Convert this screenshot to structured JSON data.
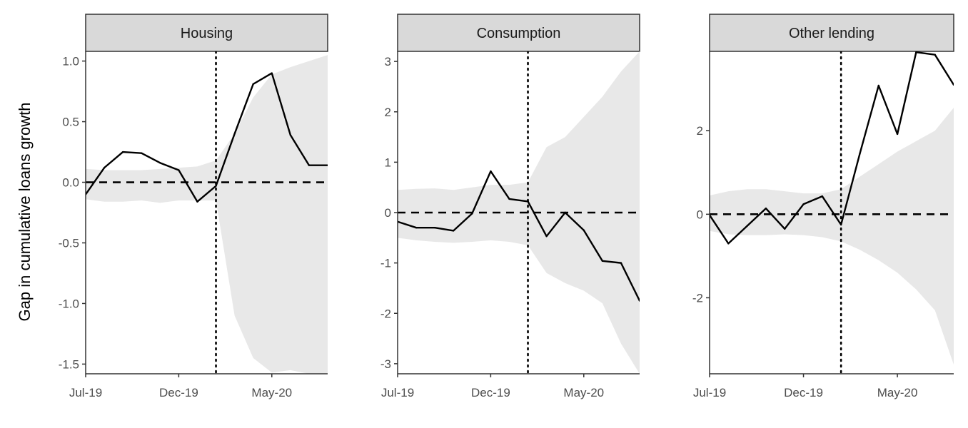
{
  "ylabel": "Gap in cumulative loans growth",
  "colors": {
    "band": "#e8e8e8",
    "line": "#000000",
    "strip": "#d9d9d9",
    "frame": "#333333"
  },
  "chart_data": [
    {
      "type": "line",
      "title": "Housing",
      "x": [
        "Jul-19",
        "Aug-19",
        "Sep-19",
        "Oct-19",
        "Nov-19",
        "Dec-19",
        "Jan-20",
        "Feb-20",
        "Mar-20",
        "Apr-20",
        "May-20",
        "Jun-20",
        "Jul-20",
        "Aug-20"
      ],
      "xticks": [
        "Jul-19",
        "Dec-19",
        "May-20"
      ],
      "yticks": [
        1.0,
        0.5,
        0.0,
        -0.5,
        -1.0,
        -1.5
      ],
      "ytick_labels": [
        "1.0",
        "0.5",
        "0.0",
        "-0.5",
        "-1.0",
        "-1.5"
      ],
      "ylim": [
        -1.58,
        1.08
      ],
      "series": [
        {
          "values": [
            -0.1,
            0.12,
            0.25,
            0.24,
            0.16,
            0.1,
            -0.16,
            -0.03,
            0.4,
            0.81,
            0.9,
            0.39,
            0.14,
            0.14
          ]
        }
      ],
      "band": {
        "lower": [
          -0.14,
          -0.16,
          -0.16,
          -0.15,
          -0.17,
          -0.15,
          -0.15,
          -0.15,
          -1.1,
          -1.45,
          -1.57,
          -1.55,
          -1.58,
          -1.58
        ],
        "upper": [
          0.11,
          0.1,
          0.1,
          0.1,
          0.11,
          0.12,
          0.13,
          0.18,
          0.4,
          0.7,
          0.89,
          0.95,
          1.0,
          1.05
        ]
      },
      "vline": 7
    },
    {
      "type": "line",
      "title": "Consumption",
      "x": [
        "Jul-19",
        "Aug-19",
        "Sep-19",
        "Oct-19",
        "Nov-19",
        "Dec-19",
        "Jan-20",
        "Feb-20",
        "Mar-20",
        "Apr-20",
        "May-20",
        "Jun-20",
        "Jul-20",
        "Aug-20"
      ],
      "xticks": [
        "Jul-19",
        "Dec-19",
        "May-20"
      ],
      "yticks": [
        3,
        2,
        1,
        0,
        -1,
        -2,
        -3
      ],
      "ytick_labels": [
        "3",
        "2",
        "1",
        "0",
        "-1",
        "-2",
        "-3"
      ],
      "ylim": [
        -3.2,
        3.2
      ],
      "series": [
        {
          "values": [
            -0.18,
            -0.3,
            -0.3,
            -0.36,
            -0.02,
            0.82,
            0.27,
            0.22,
            -0.47,
            0.0,
            -0.35,
            -0.96,
            -1.0,
            -1.75
          ]
        }
      ],
      "band": {
        "lower": [
          -0.5,
          -0.55,
          -0.58,
          -0.6,
          -0.58,
          -0.55,
          -0.58,
          -0.65,
          -1.2,
          -1.4,
          -1.55,
          -1.8,
          -2.6,
          -3.2
        ],
        "upper": [
          0.45,
          0.47,
          0.48,
          0.45,
          0.5,
          0.55,
          0.55,
          0.6,
          1.3,
          1.5,
          1.9,
          2.3,
          2.8,
          3.2
        ]
      },
      "vline": 7
    },
    {
      "type": "line",
      "title": "Other lending",
      "x": [
        "Jul-19",
        "Aug-19",
        "Sep-19",
        "Oct-19",
        "Nov-19",
        "Dec-19",
        "Jan-20",
        "Feb-20",
        "Mar-20",
        "Apr-20",
        "May-20",
        "Jun-20",
        "Jul-20",
        "Aug-20"
      ],
      "xticks": [
        "Jul-19",
        "Dec-19",
        "May-20"
      ],
      "yticks": [
        2,
        0,
        -2
      ],
      "ytick_labels": [
        "2",
        "0",
        "-2"
      ],
      "ylim": [
        -3.82,
        3.9
      ],
      "series": [
        {
          "values": [
            -0.02,
            -0.7,
            -0.28,
            0.14,
            -0.35,
            0.24,
            0.43,
            -0.25,
            1.45,
            3.08,
            1.92,
            3.88,
            3.82,
            3.1
          ]
        }
      ],
      "band": {
        "lower": [
          -0.4,
          -0.48,
          -0.5,
          -0.5,
          -0.48,
          -0.5,
          -0.55,
          -0.65,
          -0.85,
          -1.1,
          -1.4,
          -1.8,
          -2.3,
          -3.6
        ],
        "upper": [
          0.45,
          0.55,
          0.6,
          0.6,
          0.55,
          0.5,
          0.5,
          0.6,
          0.9,
          1.2,
          1.5,
          1.75,
          2.0,
          2.55
        ]
      },
      "vline": 7
    }
  ]
}
